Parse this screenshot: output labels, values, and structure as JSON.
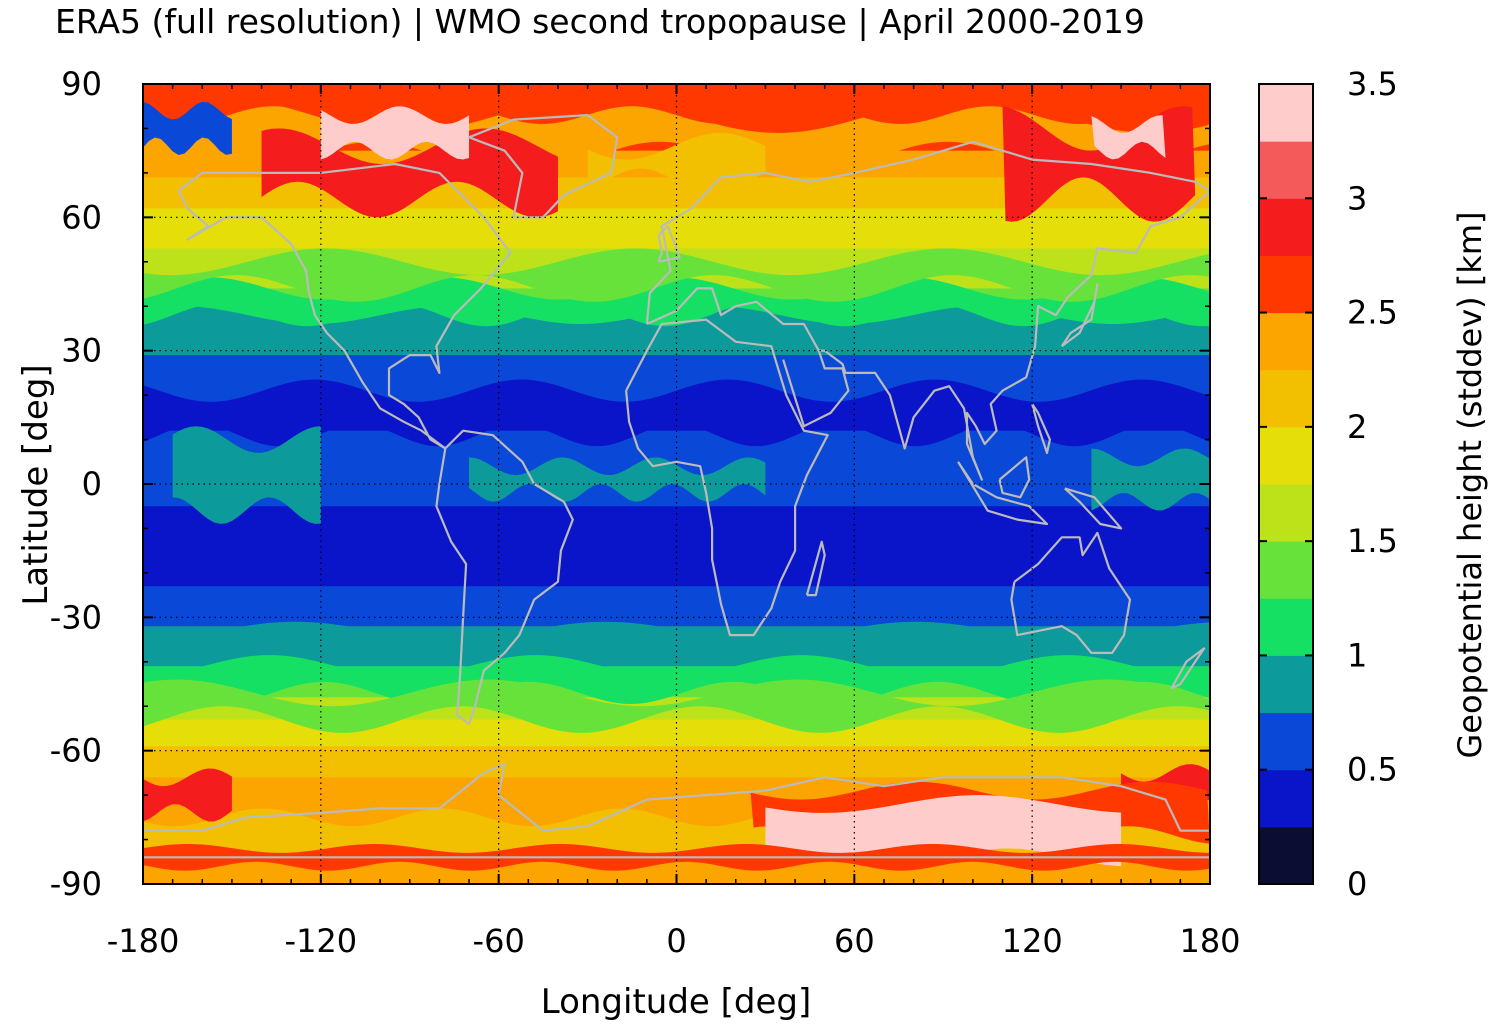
{
  "title": "ERA5 (full resolution) | WMO second tropopause | April 2000-2019",
  "x_axis": {
    "label": "Longitude [deg]",
    "ticks": [
      "-180",
      "-120",
      "-60",
      "0",
      "60",
      "120",
      "180"
    ],
    "range": [
      -180,
      180
    ]
  },
  "y_axis": {
    "label": "Latitude [deg]",
    "ticks": [
      "90",
      "60",
      "30",
      "0",
      "-30",
      "-60",
      "-90"
    ],
    "range": [
      -90,
      90
    ]
  },
  "colorbar": {
    "label": "Geopotential height (stddev) [km]",
    "ticks": [
      "3.5",
      "3",
      "2.5",
      "2",
      "1.5",
      "1",
      "0.5",
      "0"
    ],
    "range": [
      0,
      3.5
    ],
    "levels": [
      {
        "from": 0.0,
        "to": 0.25,
        "color": "#0b0d33"
      },
      {
        "from": 0.25,
        "to": 0.5,
        "color": "#0a14c8"
      },
      {
        "from": 0.5,
        "to": 0.75,
        "color": "#0a48d8"
      },
      {
        "from": 0.75,
        "to": 1.0,
        "color": "#0d9a9a"
      },
      {
        "from": 1.0,
        "to": 1.25,
        "color": "#16e064"
      },
      {
        "from": 1.25,
        "to": 1.5,
        "color": "#66e23a"
      },
      {
        "from": 1.5,
        "to": 1.75,
        "color": "#bde21a"
      },
      {
        "from": 1.75,
        "to": 2.0,
        "color": "#e6de08"
      },
      {
        "from": 2.0,
        "to": 2.25,
        "color": "#f2c000"
      },
      {
        "from": 2.25,
        "to": 2.5,
        "color": "#fca400"
      },
      {
        "from": 2.5,
        "to": 2.75,
        "color": "#ff3800"
      },
      {
        "from": 2.75,
        "to": 3.0,
        "color": "#f41c1c"
      },
      {
        "from": 3.0,
        "to": 3.25,
        "color": "#f45a5a"
      },
      {
        "from": 3.25,
        "to": 3.5,
        "color": "#ffcccc"
      }
    ]
  },
  "map": {
    "grid": "dotted",
    "coastline_color": "#bbbbbb",
    "zonal_pattern": [
      {
        "lat": 85,
        "stddev": 2.6
      },
      {
        "lat": 75,
        "stddev": 2.5
      },
      {
        "lat": 65,
        "stddev": 2.1
      },
      {
        "lat": 55,
        "stddev": 1.8
      },
      {
        "lat": 45,
        "stddev": 1.55
      },
      {
        "lat": 38,
        "stddev": 1.05
      },
      {
        "lat": 32,
        "stddev": 0.85
      },
      {
        "lat": 25,
        "stddev": 0.6
      },
      {
        "lat": 15,
        "stddev": 0.45
      },
      {
        "lat": 5,
        "stddev": 0.6
      },
      {
        "lat": -2,
        "stddev": 0.55
      },
      {
        "lat": -10,
        "stddev": 0.4
      },
      {
        "lat": -20,
        "stddev": 0.45
      },
      {
        "lat": -28,
        "stddev": 0.6
      },
      {
        "lat": -33,
        "stddev": 0.8
      },
      {
        "lat": -40,
        "stddev": 0.95
      },
      {
        "lat": -45,
        "stddev": 1.3
      },
      {
        "lat": -50,
        "stddev": 1.6
      },
      {
        "lat": -55,
        "stddev": 1.85
      },
      {
        "lat": -62,
        "stddev": 2.1
      },
      {
        "lat": -68,
        "stddev": 2.3
      },
      {
        "lat": -75,
        "stddev": 2.2
      },
      {
        "lat": -82,
        "stddev": 2.2
      },
      {
        "lat": -88,
        "stddev": 2.3
      }
    ]
  }
}
